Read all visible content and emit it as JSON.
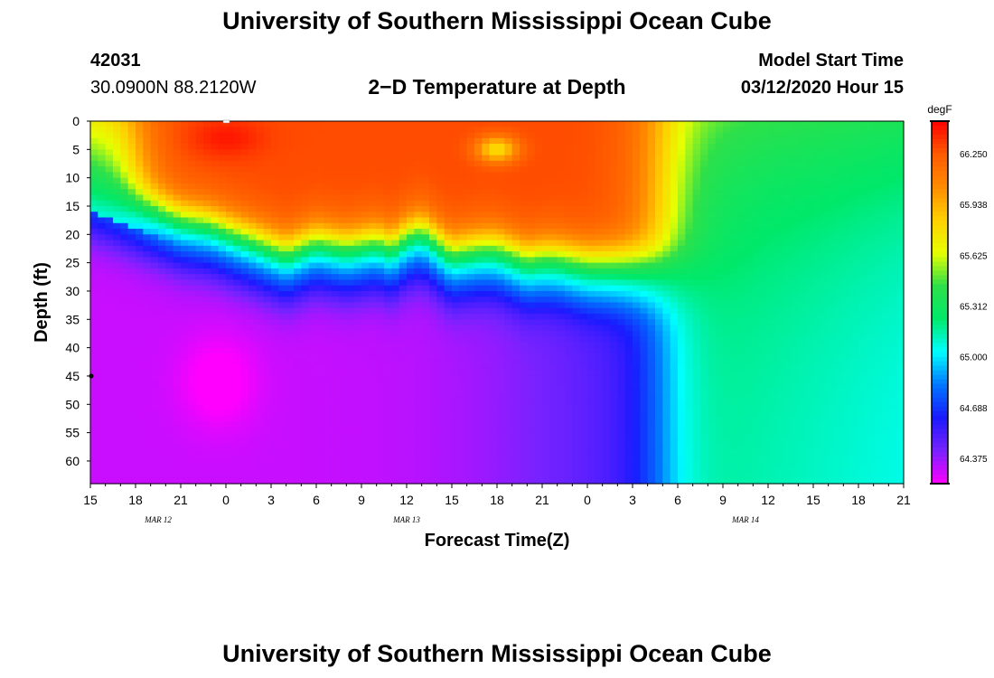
{
  "header": {
    "top_title": "University of Southern Mississippi Ocean Cube",
    "station_id": "42031",
    "location": "30.0900N 88.2120W",
    "plot_title": "2−D Temperature at Depth",
    "model_start_label": "Model Start Time",
    "model_start_value": "03/12/2020 Hour 15",
    "bottom_title": "University of Southern Mississippi Ocean Cube"
  },
  "chart_data": {
    "type": "heatmap",
    "title": "2−D Temperature at Depth",
    "xlabel": "Forecast Time(Z)",
    "ylabel": "Depth (ft)",
    "colorbar_unit": "degF",
    "colorbar_labels": [
      "66.250",
      "65.938",
      "65.625",
      "65.312",
      "65.000",
      "64.688",
      "64.375"
    ],
    "colorbar_values": [
      66.25,
      65.938,
      65.625,
      65.312,
      65.0,
      64.688,
      64.375
    ],
    "color_range": [
      64.22,
      66.45
    ],
    "colors": [
      "#ff00ff",
      "#7722ff",
      "#1a1aff",
      "#0077ff",
      "#00ffff",
      "#00e86a",
      "#2ee04a",
      "#e6ff00",
      "#ffd000",
      "#ff8c00",
      "#ff5a00",
      "#ff0000"
    ],
    "x_tick_labels": [
      "15",
      "18",
      "21",
      "0",
      "3",
      "6",
      "9",
      "12",
      "15",
      "18",
      "21",
      "0",
      "3",
      "6",
      "9",
      "12",
      "15",
      "18",
      "21"
    ],
    "x_range_hours": [
      0,
      54
    ],
    "date_labels": [
      {
        "text": "MAR 12",
        "hour": 4.5
      },
      {
        "text": "MAR 13",
        "hour": 21
      },
      {
        "text": "MAR 14",
        "hour": 43.5
      }
    ],
    "y_tick_labels": [
      "0",
      "5",
      "10",
      "15",
      "20",
      "25",
      "30",
      "35",
      "40",
      "45",
      "50",
      "55",
      "60"
    ],
    "y_range": [
      0,
      64
    ],
    "thermocline_depth_ft": {
      "hours": [
        0,
        1,
        2,
        3,
        4,
        5,
        6,
        8,
        10,
        12,
        13,
        14,
        15,
        16,
        17,
        18,
        19,
        20,
        21,
        22,
        23,
        24,
        25,
        26,
        27,
        28,
        29,
        30,
        31,
        32,
        33,
        34,
        35,
        36,
        37,
        38,
        39,
        40,
        41,
        42,
        43,
        44,
        46,
        48,
        54
      ],
      "depths": [
        16,
        17,
        18,
        19,
        20,
        21,
        22,
        23,
        25,
        27,
        28,
        27,
        26,
        26.5,
        27,
        26.5,
        26,
        27,
        25,
        24,
        26,
        28,
        27.5,
        27,
        27,
        28,
        29,
        28.5,
        28.5,
        29,
        29.5,
        29.5,
        29.5,
        29.5,
        29.5,
        29.5,
        29.5,
        29.5,
        29.5,
        29.5,
        29.5,
        29,
        0,
        0,
        0
      ]
    },
    "warm_front_hours": [
      3,
      38
    ],
    "markers": [
      {
        "hour": 9,
        "depth": 0
      },
      {
        "hour": 0,
        "depth": 45
      }
    ]
  }
}
